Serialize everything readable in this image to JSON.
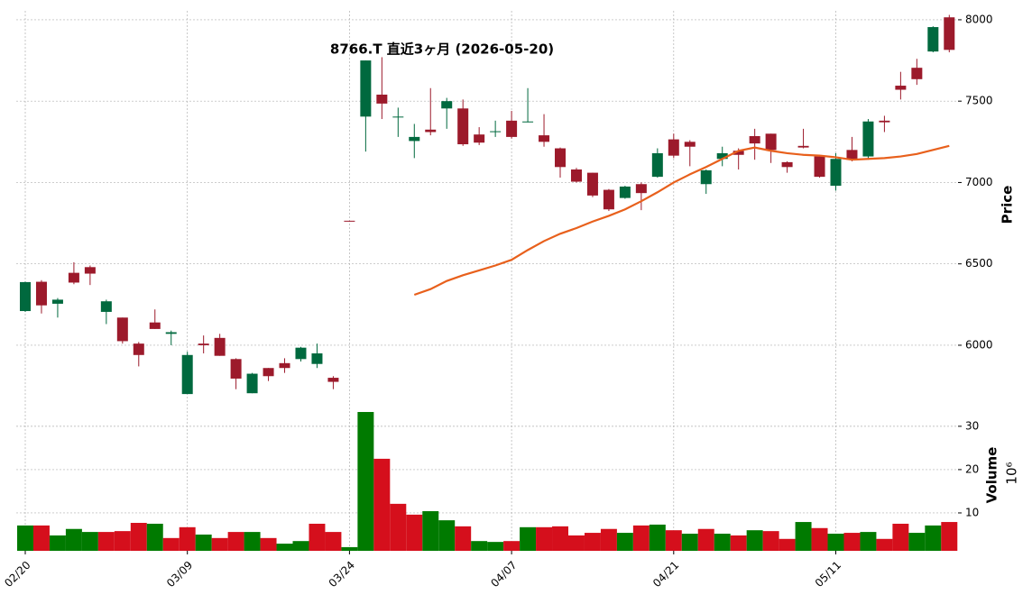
{
  "chart_data": {
    "type": "candlestick",
    "title": "8766.T 直近3ヶ月 (2026-05-20)",
    "categories": [
      "02/20",
      null,
      null,
      null,
      null,
      null,
      null,
      null,
      null,
      null,
      "03/09",
      null,
      null,
      null,
      null,
      null,
      null,
      null,
      null,
      null,
      "03/24",
      null,
      null,
      null,
      null,
      null,
      null,
      null,
      null,
      null,
      "04/07",
      null,
      null,
      null,
      null,
      null,
      null,
      null,
      null,
      null,
      "04/21",
      null,
      null,
      null,
      null,
      null,
      null,
      null,
      null,
      null,
      "05/11",
      null,
      null,
      null,
      null,
      null,
      null,
      null
    ],
    "open": [
      6210,
      6390,
      6255,
      6445,
      6480,
      6205,
      6170,
      6010,
      6140,
      6070,
      5700,
      6010,
      6045,
      5915,
      5705,
      5860,
      5890,
      5915,
      5885,
      5800,
      6765,
      7405,
      7540,
      7400,
      7255,
      7325,
      7455,
      7455,
      7295,
      7310,
      7380,
      7375,
      7290,
      7210,
      7080,
      7060,
      6955,
      6905,
      6990,
      7035,
      7265,
      7250,
      6990,
      7145,
      7195,
      7285,
      7300,
      7125,
      7225,
      7160,
      6980,
      7200,
      7160,
      7380,
      7595,
      7705,
      7805,
      8015
    ],
    "high": [
      6390,
      6400,
      6290,
      6510,
      6490,
      6280,
      6170,
      6020,
      6220,
      6090,
      5960,
      6060,
      6070,
      5920,
      5830,
      5860,
      5920,
      5990,
      6010,
      5810,
      6765,
      7750,
      7770,
      7460,
      7360,
      7580,
      7520,
      7510,
      7340,
      7380,
      7440,
      7580,
      7420,
      7215,
      7090,
      7060,
      6960,
      6980,
      7000,
      7210,
      7300,
      7260,
      7080,
      7220,
      7210,
      7330,
      7300,
      7130,
      7330,
      7160,
      7180,
      7280,
      7390,
      7410,
      7680,
      7760,
      7960,
      8030
    ],
    "low": [
      6205,
      6195,
      6170,
      6375,
      6370,
      6130,
      6010,
      5870,
      6100,
      6000,
      5700,
      5950,
      5935,
      5730,
      5705,
      5780,
      5830,
      5900,
      5860,
      5730,
      6760,
      7190,
      7390,
      7280,
      7150,
      7290,
      7330,
      7225,
      7230,
      7280,
      7270,
      7370,
      7220,
      7030,
      7000,
      6910,
      6825,
      6900,
      6830,
      7030,
      7150,
      7100,
      6930,
      7100,
      7080,
      7140,
      7120,
      7060,
      7210,
      7030,
      6950,
      7130,
      7140,
      7310,
      7510,
      7600,
      7800,
      7800
    ],
    "close": [
      6388,
      6245,
      6280,
      6385,
      6440,
      6270,
      6025,
      5940,
      6100,
      6080,
      5940,
      6000,
      5935,
      5795,
      5825,
      5810,
      5860,
      5985,
      5950,
      5775,
      6760,
      7750,
      7485,
      7405,
      7280,
      7310,
      7500,
      7235,
      7245,
      7315,
      7280,
      7375,
      7250,
      7095,
      7005,
      6920,
      6835,
      6975,
      6935,
      7180,
      7165,
      7220,
      7075,
      7180,
      7170,
      7240,
      7200,
      7095,
      7215,
      7035,
      7145,
      7140,
      7375,
      7370,
      7570,
      7635,
      7955,
      7815
    ],
    "up_color": "#00693e",
    "down_color": "#9c1a2b",
    "ylim": [
      5684,
      8055
    ],
    "yticks": [
      6000,
      6500,
      7000,
      7500,
      8000
    ],
    "ylabel": "Price",
    "grid": true,
    "ma": {
      "color": "#e8601c",
      "values": [
        null,
        null,
        null,
        null,
        null,
        null,
        null,
        null,
        null,
        null,
        null,
        null,
        null,
        null,
        null,
        null,
        null,
        null,
        null,
        null,
        null,
        null,
        null,
        null,
        6310,
        6345,
        6395,
        6430,
        6460,
        6490,
        6525,
        6585,
        6640,
        6685,
        6720,
        6760,
        6795,
        6835,
        6885,
        6940,
        7000,
        7050,
        7095,
        7145,
        7195,
        7215,
        7195,
        7180,
        7170,
        7165,
        7155,
        7140,
        7145,
        7150,
        7160,
        7175,
        7200,
        7225
      ]
    },
    "volume": {
      "values": [
        7.1,
        7.1,
        4.8,
        6.3,
        5.6,
        5.6,
        5.8,
        7.7,
        7.5,
        4.2,
        6.7,
        5.0,
        4.2,
        5.6,
        5.6,
        4.2,
        2.9,
        3.5,
        7.5,
        5.6,
        2.1,
        33.3,
        22.5,
        12.1,
        9.6,
        10.4,
        8.3,
        6.9,
        3.5,
        3.3,
        3.5,
        6.7,
        6.7,
        6.9,
        4.8,
        5.4,
        6.3,
        5.4,
        7.1,
        7.3,
        6.0,
        5.2,
        6.3,
        5.2,
        4.8,
        6.0,
        5.8,
        4.0,
        7.9,
        6.5,
        5.2,
        5.4,
        5.6,
        4.0,
        7.5,
        5.4,
        7.1,
        7.9
      ],
      "colors": [
        "#007a00",
        "#d50f1c",
        "#007a00",
        "#007a00",
        "#007a00",
        "#d50f1c",
        "#d50f1c",
        "#d50f1c",
        "#007a00",
        "#d50f1c",
        "#d50f1c",
        "#007a00",
        "#d50f1c",
        "#d50f1c",
        "#007a00",
        "#d50f1c",
        "#007a00",
        "#007a00",
        "#d50f1c",
        "#d50f1c",
        "#007a00",
        "#007a00",
        "#d50f1c",
        "#d50f1c",
        "#d50f1c",
        "#007a00",
        "#007a00",
        "#d50f1c",
        "#007a00",
        "#007a00",
        "#d50f1c",
        "#007a00",
        "#d50f1c",
        "#d50f1c",
        "#d50f1c",
        "#d50f1c",
        "#d50f1c",
        "#007a00",
        "#d50f1c",
        "#007a00",
        "#d50f1c",
        "#007a00",
        "#d50f1c",
        "#007a00",
        "#d50f1c",
        "#007a00",
        "#d50f1c",
        "#d50f1c",
        "#007a00",
        "#d50f1c",
        "#007a00",
        "#d50f1c",
        "#007a00",
        "#d50f1c",
        "#d50f1c",
        "#007a00",
        "#007a00",
        "#d50f1c"
      ],
      "ylim": [
        1.25,
        35.8
      ],
      "yticks": [
        10,
        20,
        30
      ],
      "ylabel": "Volume",
      "scale_label": "10⁶"
    }
  }
}
